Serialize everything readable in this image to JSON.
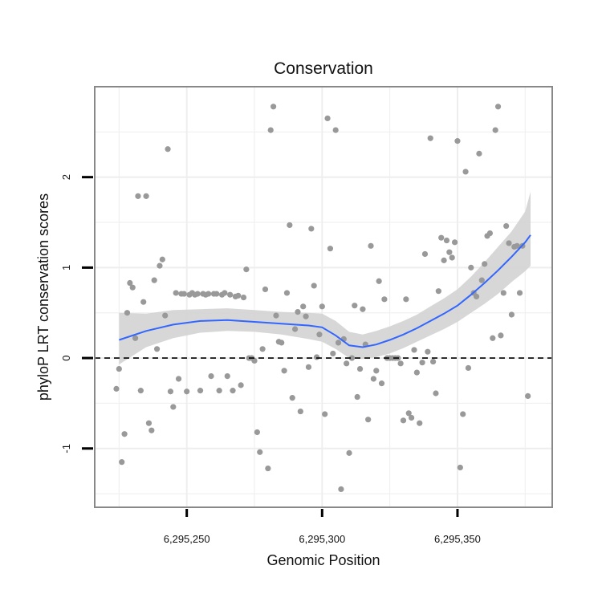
{
  "chart_data": {
    "type": "scatter",
    "title": "Conservation",
    "xlabel": "Genomic Position",
    "ylabel": "phyloP LRT conservation scores",
    "xlim": [
      6295216,
      6295385
    ],
    "ylim": [
      -1.65,
      3.0
    ],
    "x_ticks": [
      6295250,
      6295300,
      6295350
    ],
    "x_tick_labels": [
      "6,295,250",
      "6,295,300",
      "6,295,350"
    ],
    "y_ticks": [
      -1,
      0,
      1,
      2
    ],
    "y_tick_labels": [
      "-1",
      "0",
      "1",
      "2"
    ],
    "reference_line": {
      "y": 0,
      "style": "dashed"
    },
    "colors": {
      "points": "#999999",
      "smooth_line": "#3366ff",
      "confidence_band": "#d3d3d3",
      "panel_border": "#888888",
      "grid": "#eeeeee"
    },
    "smooth_fit": {
      "x": [
        6295225,
        6295235,
        6295245,
        6295255,
        6295265,
        6295275,
        6295285,
        6295295,
        6295300,
        6295305,
        6295310,
        6295315,
        6295320,
        6295325,
        6295330,
        6295335,
        6295340,
        6295345,
        6295350,
        6295355,
        6295360,
        6295365,
        6295370,
        6295375,
        6295377
      ],
      "y": [
        0.2,
        0.3,
        0.37,
        0.41,
        0.42,
        0.4,
        0.38,
        0.36,
        0.34,
        0.25,
        0.14,
        0.12,
        0.15,
        0.2,
        0.26,
        0.33,
        0.41,
        0.49,
        0.58,
        0.7,
        0.83,
        0.97,
        1.12,
        1.28,
        1.36
      ],
      "lower": [
        -0.07,
        0.12,
        0.22,
        0.28,
        0.3,
        0.29,
        0.26,
        0.21,
        0.18,
        0.1,
        0.0,
        -0.01,
        0.01,
        0.05,
        0.11,
        0.18,
        0.25,
        0.32,
        0.4,
        0.5,
        0.6,
        0.71,
        0.84,
        0.96,
        1.02
      ],
      "upper": [
        0.5,
        0.49,
        0.53,
        0.54,
        0.55,
        0.53,
        0.51,
        0.5,
        0.49,
        0.41,
        0.29,
        0.26,
        0.3,
        0.35,
        0.41,
        0.48,
        0.57,
        0.66,
        0.76,
        0.9,
        1.06,
        1.23,
        1.4,
        1.62,
        1.84
      ]
    },
    "points": [
      {
        "x": 6295224,
        "y": -0.34
      },
      {
        "x": 6295225,
        "y": -0.12
      },
      {
        "x": 6295226,
        "y": -1.15
      },
      {
        "x": 6295227,
        "y": -0.84
      },
      {
        "x": 6295228,
        "y": 0.5
      },
      {
        "x": 6295229,
        "y": 0.83
      },
      {
        "x": 6295230,
        "y": 0.78
      },
      {
        "x": 6295231,
        "y": 0.22
      },
      {
        "x": 6295232,
        "y": 1.79
      },
      {
        "x": 6295233,
        "y": -0.36
      },
      {
        "x": 6295234,
        "y": 0.62
      },
      {
        "x": 6295235,
        "y": 1.79
      },
      {
        "x": 6295236,
        "y": -0.72
      },
      {
        "x": 6295237,
        "y": -0.8
      },
      {
        "x": 6295238,
        "y": 0.86
      },
      {
        "x": 6295239,
        "y": 0.1
      },
      {
        "x": 6295240,
        "y": 1.02
      },
      {
        "x": 6295241,
        "y": 1.09
      },
      {
        "x": 6295242,
        "y": 0.47
      },
      {
        "x": 6295243,
        "y": 2.31
      },
      {
        "x": 6295244,
        "y": -0.37
      },
      {
        "x": 6295245,
        "y": -0.54
      },
      {
        "x": 6295246,
        "y": 0.72
      },
      {
        "x": 6295247,
        "y": -0.23
      },
      {
        "x": 6295248,
        "y": 0.71
      },
      {
        "x": 6295249,
        "y": 0.71
      },
      {
        "x": 6295250,
        "y": -0.37
      },
      {
        "x": 6295251,
        "y": 0.7
      },
      {
        "x": 6295252,
        "y": 0.72
      },
      {
        "x": 6295253,
        "y": 0.7
      },
      {
        "x": 6295254,
        "y": 0.71
      },
      {
        "x": 6295255,
        "y": -0.36
      },
      {
        "x": 6295256,
        "y": 0.71
      },
      {
        "x": 6295257,
        "y": 0.7
      },
      {
        "x": 6295258,
        "y": 0.71
      },
      {
        "x": 6295259,
        "y": -0.2
      },
      {
        "x": 6295260,
        "y": 0.71
      },
      {
        "x": 6295261,
        "y": 0.71
      },
      {
        "x": 6295262,
        "y": -0.36
      },
      {
        "x": 6295263,
        "y": 0.7
      },
      {
        "x": 6295264,
        "y": 0.72
      },
      {
        "x": 6295265,
        "y": -0.2
      },
      {
        "x": 6295266,
        "y": 0.7
      },
      {
        "x": 6295267,
        "y": -0.36
      },
      {
        "x": 6295268,
        "y": 0.68
      },
      {
        "x": 6295269,
        "y": 0.69
      },
      {
        "x": 6295270,
        "y": -0.3
      },
      {
        "x": 6295271,
        "y": 0.67
      },
      {
        "x": 6295272,
        "y": 0.98
      },
      {
        "x": 6295273,
        "y": 0.0
      },
      {
        "x": 6295274,
        "y": 0.0
      },
      {
        "x": 6295275,
        "y": -0.03
      },
      {
        "x": 6295276,
        "y": -0.82
      },
      {
        "x": 6295277,
        "y": -1.04
      },
      {
        "x": 6295278,
        "y": 0.1
      },
      {
        "x": 6295279,
        "y": 0.76
      },
      {
        "x": 6295280,
        "y": -1.22
      },
      {
        "x": 6295281,
        "y": 2.52
      },
      {
        "x": 6295282,
        "y": 2.78
      },
      {
        "x": 6295283,
        "y": 0.47
      },
      {
        "x": 6295284,
        "y": 0.18
      },
      {
        "x": 6295285,
        "y": 0.17
      },
      {
        "x": 6295286,
        "y": -0.14
      },
      {
        "x": 6295287,
        "y": 0.72
      },
      {
        "x": 6295288,
        "y": 1.47
      },
      {
        "x": 6295289,
        "y": -0.44
      },
      {
        "x": 6295290,
        "y": 0.32
      },
      {
        "x": 6295291,
        "y": 0.51
      },
      {
        "x": 6295292,
        "y": -0.59
      },
      {
        "x": 6295293,
        "y": 0.57
      },
      {
        "x": 6295294,
        "y": 0.46
      },
      {
        "x": 6295295,
        "y": -0.1
      },
      {
        "x": 6295296,
        "y": 1.43
      },
      {
        "x": 6295297,
        "y": 0.8
      },
      {
        "x": 6295298,
        "y": 0.01
      },
      {
        "x": 6295299,
        "y": 0.26
      },
      {
        "x": 6295300,
        "y": 0.57
      },
      {
        "x": 6295301,
        "y": -0.62
      },
      {
        "x": 6295302,
        "y": 2.65
      },
      {
        "x": 6295303,
        "y": 1.21
      },
      {
        "x": 6295304,
        "y": 0.05
      },
      {
        "x": 6295305,
        "y": 2.52
      },
      {
        "x": 6295306,
        "y": 0.17
      },
      {
        "x": 6295307,
        "y": -1.45
      },
      {
        "x": 6295308,
        "y": 0.21
      },
      {
        "x": 6295309,
        "y": -0.06
      },
      {
        "x": 6295310,
        "y": -1.05
      },
      {
        "x": 6295311,
        "y": 0.0
      },
      {
        "x": 6295312,
        "y": 0.58
      },
      {
        "x": 6295313,
        "y": -0.43
      },
      {
        "x": 6295314,
        "y": -0.12
      },
      {
        "x": 6295315,
        "y": 0.54
      },
      {
        "x": 6295316,
        "y": 0.15
      },
      {
        "x": 6295317,
        "y": -0.68
      },
      {
        "x": 6295318,
        "y": 1.24
      },
      {
        "x": 6295319,
        "y": -0.23
      },
      {
        "x": 6295320,
        "y": -0.14
      },
      {
        "x": 6295321,
        "y": 0.85
      },
      {
        "x": 6295322,
        "y": -0.28
      },
      {
        "x": 6295323,
        "y": 0.65
      },
      {
        "x": 6295324,
        "y": 0.0
      },
      {
        "x": 6295325,
        "y": 0.0
      },
      {
        "x": 6295326,
        "y": 0.0
      },
      {
        "x": 6295327,
        "y": 0.0
      },
      {
        "x": 6295328,
        "y": 0.0
      },
      {
        "x": 6295329,
        "y": -0.06
      },
      {
        "x": 6295330,
        "y": -0.69
      },
      {
        "x": 6295331,
        "y": 0.65
      },
      {
        "x": 6295332,
        "y": -0.61
      },
      {
        "x": 6295333,
        "y": -0.66
      },
      {
        "x": 6295334,
        "y": 0.09
      },
      {
        "x": 6295335,
        "y": -0.16
      },
      {
        "x": 6295336,
        "y": -0.72
      },
      {
        "x": 6295337,
        "y": -0.05
      },
      {
        "x": 6295338,
        "y": 1.15
      },
      {
        "x": 6295339,
        "y": 0.07
      },
      {
        "x": 6295340,
        "y": 2.43
      },
      {
        "x": 6295341,
        "y": -0.04
      },
      {
        "x": 6295342,
        "y": -0.39
      },
      {
        "x": 6295343,
        "y": 0.74
      },
      {
        "x": 6295344,
        "y": 1.33
      },
      {
        "x": 6295345,
        "y": 1.08
      },
      {
        "x": 6295346,
        "y": 1.3
      },
      {
        "x": 6295347,
        "y": 1.17
      },
      {
        "x": 6295348,
        "y": 1.11
      },
      {
        "x": 6295349,
        "y": 1.28
      },
      {
        "x": 6295350,
        "y": 2.4
      },
      {
        "x": 6295351,
        "y": -1.21
      },
      {
        "x": 6295352,
        "y": -0.62
      },
      {
        "x": 6295353,
        "y": 2.06
      },
      {
        "x": 6295354,
        "y": -0.11
      },
      {
        "x": 6295355,
        "y": 1.0
      },
      {
        "x": 6295356,
        "y": 0.72
      },
      {
        "x": 6295357,
        "y": 0.68
      },
      {
        "x": 6295358,
        "y": 2.26
      },
      {
        "x": 6295359,
        "y": 0.86
      },
      {
        "x": 6295360,
        "y": 1.04
      },
      {
        "x": 6295361,
        "y": 1.35
      },
      {
        "x": 6295362,
        "y": 1.38
      },
      {
        "x": 6295363,
        "y": 0.22
      },
      {
        "x": 6295364,
        "y": 2.52
      },
      {
        "x": 6295365,
        "y": 2.78
      },
      {
        "x": 6295366,
        "y": 0.25
      },
      {
        "x": 6295367,
        "y": 0.72
      },
      {
        "x": 6295368,
        "y": 1.46
      },
      {
        "x": 6295369,
        "y": 1.27
      },
      {
        "x": 6295370,
        "y": 0.48
      },
      {
        "x": 6295371,
        "y": 1.23
      },
      {
        "x": 6295372,
        "y": 1.24
      },
      {
        "x": 6295373,
        "y": 0.72
      },
      {
        "x": 6295374,
        "y": 1.24
      },
      {
        "x": 6295376,
        "y": -0.42
      }
    ]
  }
}
